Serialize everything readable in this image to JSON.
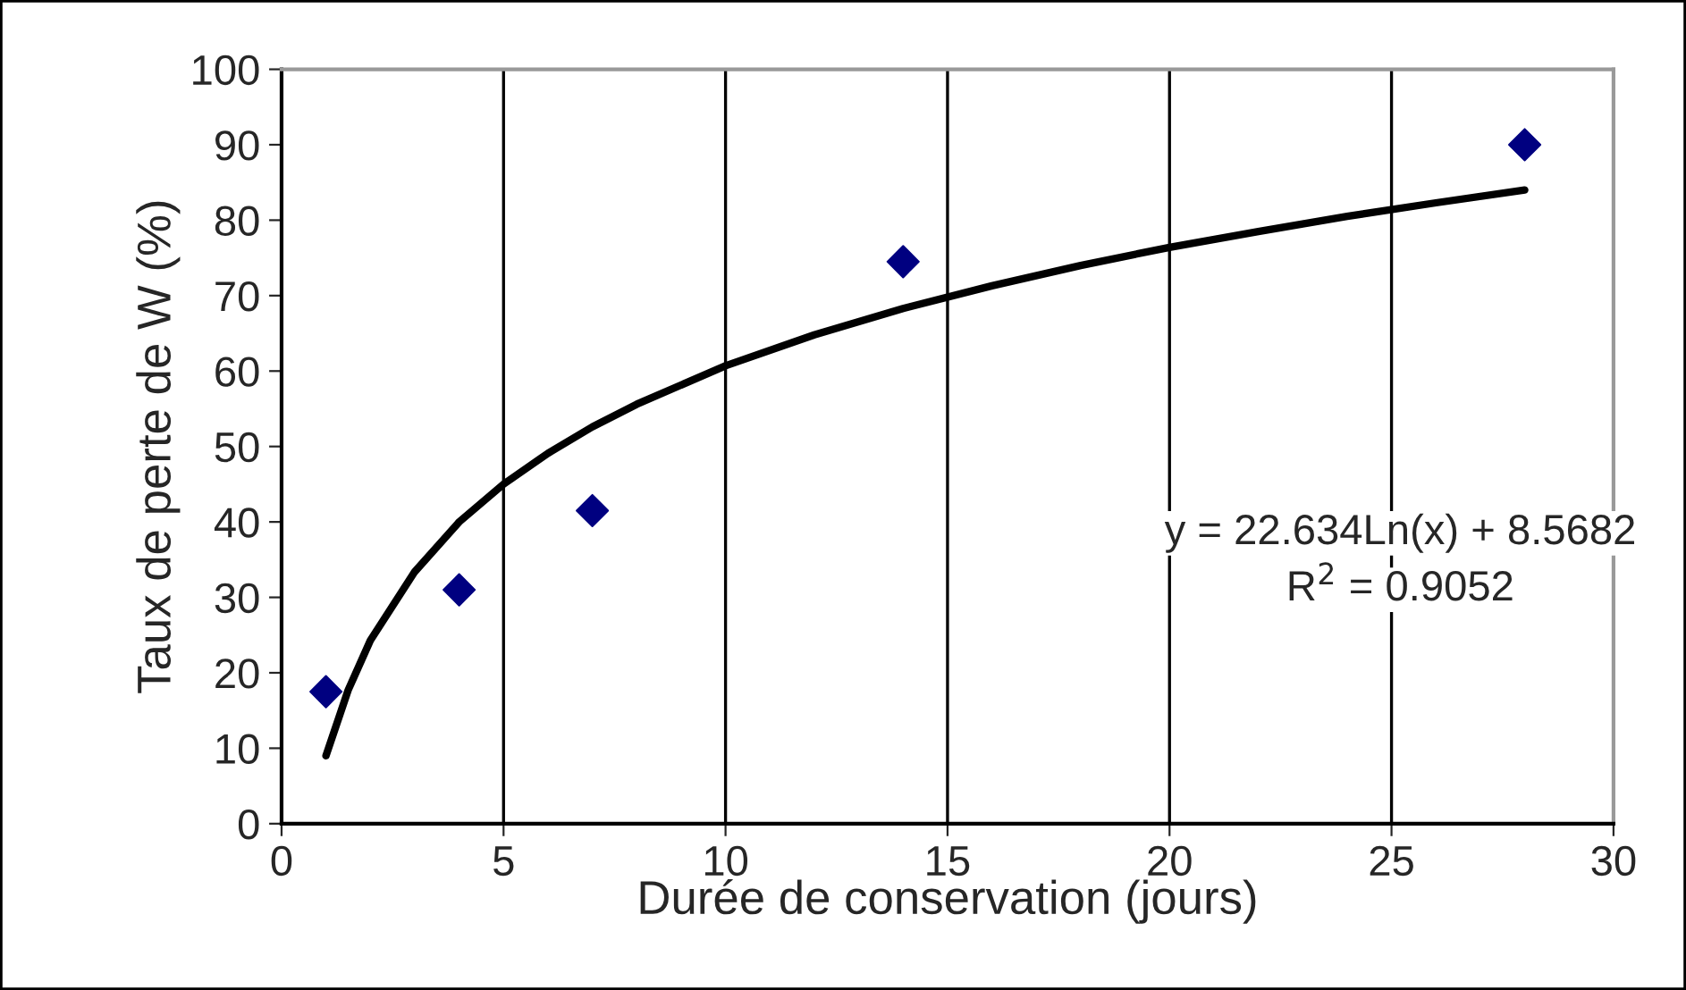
{
  "chart_data": {
    "type": "scatter",
    "xlabel": "Durée de conservation (jours)",
    "ylabel": "Taux de perte de W (%)",
    "xlim": [
      0,
      30
    ],
    "xticks": [
      0,
      5,
      10,
      15,
      20,
      25,
      30
    ],
    "ylim": [
      0,
      100
    ],
    "yticks": [
      0,
      10,
      20,
      30,
      40,
      50,
      60,
      70,
      80,
      90,
      100
    ],
    "grid": "x",
    "legend": false,
    "annotations": [
      "y = 22.634Ln(x) + 8.5682",
      "R$^{2}$ = 0.9052"
    ],
    "series": [
      {
        "color": "#000080",
        "marker": "diamond",
        "x": [
          1,
          4,
          7,
          14,
          28
        ],
        "values": [
          17.5,
          31,
          41.5,
          74.5,
          90
        ]
      },
      {
        "type": "line",
        "color": "#000000",
        "marker": "none",
        "line_style": "solid",
        "x": [
          1,
          1.5,
          2,
          3,
          4,
          5,
          6,
          7,
          8,
          10,
          12,
          14,
          16,
          18,
          20,
          22,
          24,
          26,
          28
        ],
        "values": [
          9,
          17.7,
          24.3,
          33.4,
          40,
          45,
          49.1,
          52.6,
          55.6,
          60.7,
          64.8,
          68.3,
          71.3,
          74,
          76.4,
          78.5,
          80.5,
          82.3,
          84
        ]
      }
    ]
  }
}
